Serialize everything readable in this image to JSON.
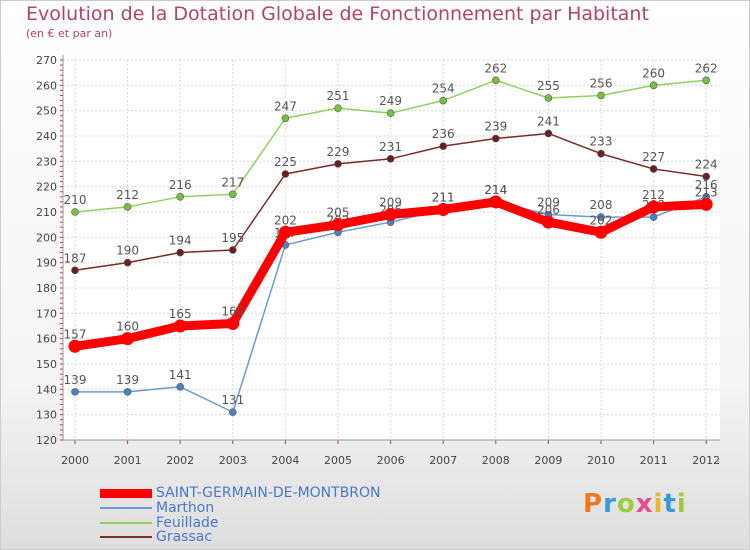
{
  "title": "Evolution de la Dotation Globale de Fonctionnement par Habitant",
  "subtitle": "(en € et par an)",
  "logo": {
    "text": "Proxiti",
    "colors": [
      "#f07820",
      "#3a9ad9",
      "#9ccc3c",
      "#e84c8c",
      "#f0b428",
      "#3a9ad9",
      "#9ccc3c"
    ]
  },
  "chart_data": {
    "type": "line",
    "x": [
      "2000",
      "2001",
      "2002",
      "2003",
      "2004",
      "2005",
      "2006",
      "2007",
      "2008",
      "2009",
      "2010",
      "2011",
      "2012"
    ],
    "ylim": [
      120,
      270
    ],
    "yticks": [
      "120",
      "130",
      "140",
      "150",
      "160",
      "170",
      "180",
      "190",
      "200",
      "210",
      "220",
      "230",
      "240",
      "250",
      "260",
      "270"
    ],
    "grid": true,
    "legend_position": "bottom-left",
    "series": [
      {
        "name": "Feuillade",
        "color": "#8fd160",
        "marker": "#77c040",
        "values": [
          210,
          212,
          216,
          217,
          247,
          251,
          249,
          254,
          262,
          255,
          256,
          260,
          262
        ],
        "labels": [
          "210",
          "212",
          "216",
          "217",
          "247",
          "251",
          "249",
          "254",
          "262",
          "255",
          "256",
          "260",
          "262"
        ]
      },
      {
        "name": "Grassac",
        "color": "#7a2a2a",
        "marker": "#6a2020",
        "values": [
          187,
          190,
          194,
          195,
          225,
          229,
          231,
          236,
          239,
          241,
          233,
          227,
          224
        ],
        "labels": [
          "187",
          "190",
          "194",
          "195",
          "225",
          "229",
          "231",
          "236",
          "239",
          "241",
          "233",
          "227",
          "224"
        ]
      },
      {
        "name": "Marthon",
        "color": "#6a9bd0",
        "marker": "#4a82c2",
        "values": [
          139,
          139,
          141,
          131,
          197,
          202,
          206,
          211,
          214,
          209,
          208,
          208,
          216
        ],
        "labels": [
          "139",
          "139",
          "141",
          "131",
          "197",
          "202",
          "206",
          "211",
          "214",
          "209",
          "208",
          "208",
          "216"
        ]
      },
      {
        "name": "SAINT-GERMAIN-DE-MONTBRON",
        "color": "#ff0000",
        "marker": "#ff0000",
        "values": [
          157,
          160,
          165,
          166,
          202,
          205,
          209,
          211,
          214,
          206,
          202,
          212,
          213
        ],
        "labels": [
          "157",
          "160",
          "165",
          "166",
          "202",
          "205",
          "209",
          "211",
          "214",
          "206",
          "202",
          "212",
          "213"
        ]
      }
    ]
  },
  "legend": [
    {
      "label": "SAINT-GERMAIN-DE-MONTBRON",
      "color": "#ff0000",
      "thick": true
    },
    {
      "label": "Marthon",
      "color": "#6a9bd0",
      "thick": false
    },
    {
      "label": "Feuillade",
      "color": "#8fd160",
      "thick": false
    },
    {
      "label": "Grassac",
      "color": "#7a2a2a",
      "thick": false
    }
  ]
}
